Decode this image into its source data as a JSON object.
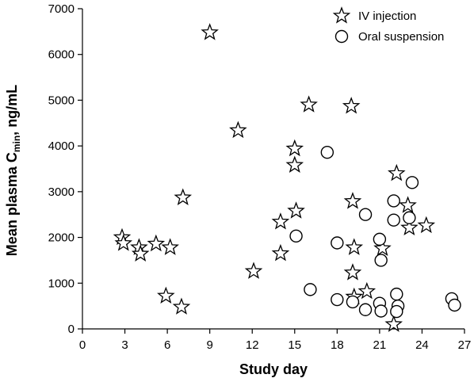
{
  "chart_data": {
    "type": "scatter",
    "xlabel": "Study day",
    "ylabel_main": "Mean plasma C",
    "ylabel_sub": "min",
    "ylabel_tail": ", ng/mL",
    "xlim": [
      0,
      27
    ],
    "ylim": [
      0,
      7000
    ],
    "xticks": [
      0,
      3,
      6,
      9,
      12,
      15,
      18,
      21,
      24,
      27
    ],
    "yticks": [
      0,
      1000,
      2000,
      3000,
      4000,
      5000,
      6000,
      7000
    ],
    "legend_position": "top-right",
    "series": [
      {
        "name": "IV injection",
        "marker": "star",
        "points": [
          [
            2.8,
            2000
          ],
          [
            2.9,
            1870
          ],
          [
            4.0,
            1780
          ],
          [
            4.1,
            1640
          ],
          [
            5.2,
            1860
          ],
          [
            5.9,
            720
          ],
          [
            6.2,
            1780
          ],
          [
            7.0,
            480
          ],
          [
            7.1,
            2870
          ],
          [
            9.0,
            6480
          ],
          [
            11.0,
            4340
          ],
          [
            12.1,
            1260
          ],
          [
            14.0,
            2340
          ],
          [
            14.0,
            1650
          ],
          [
            15.0,
            3940
          ],
          [
            15.0,
            3580
          ],
          [
            15.1,
            2580
          ],
          [
            16.0,
            4900
          ],
          [
            19.0,
            4870
          ],
          [
            19.1,
            2790
          ],
          [
            19.2,
            1780
          ],
          [
            19.1,
            1230
          ],
          [
            19.2,
            700
          ],
          [
            20.1,
            820
          ],
          [
            21.2,
            1760
          ],
          [
            22.0,
            100
          ],
          [
            22.2,
            3400
          ],
          [
            23.0,
            2700
          ],
          [
            23.1,
            2210
          ],
          [
            24.3,
            2260
          ]
        ]
      },
      {
        "name": "Oral suspension",
        "marker": "circle",
        "points": [
          [
            15.1,
            2030
          ],
          [
            16.1,
            860
          ],
          [
            17.3,
            3860
          ],
          [
            18.0,
            1880
          ],
          [
            18.0,
            640
          ],
          [
            19.1,
            590
          ],
          [
            20.0,
            2500
          ],
          [
            20.0,
            420
          ],
          [
            21.0,
            1960
          ],
          [
            21.1,
            1500
          ],
          [
            21.0,
            560
          ],
          [
            21.1,
            390
          ],
          [
            22.0,
            2800
          ],
          [
            22.0,
            2380
          ],
          [
            22.2,
            760
          ],
          [
            22.3,
            500
          ],
          [
            22.2,
            380
          ],
          [
            23.3,
            3200
          ],
          [
            23.1,
            2430
          ],
          [
            26.1,
            660
          ],
          [
            26.3,
            520
          ]
        ]
      }
    ]
  }
}
